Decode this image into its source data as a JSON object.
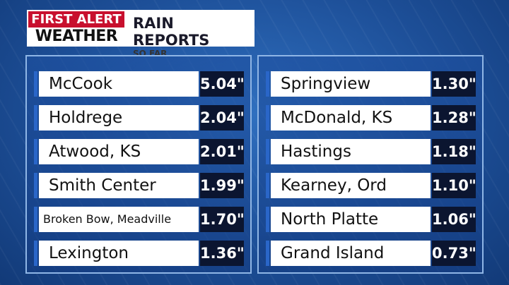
{
  "header": {
    "logo_top": "FIRST ALERT",
    "logo_bottom": "WEATHER",
    "title": "RAIN REPORTS",
    "subtitle": "SO FAR"
  },
  "panels": [
    {
      "rows": [
        {
          "location": "McCook",
          "amount": "5.04\""
        },
        {
          "location": "Holdrege",
          "amount": "2.04\""
        },
        {
          "location": "Atwood, KS",
          "amount": "2.01\""
        },
        {
          "location": "Smith Center",
          "amount": "1.99\""
        },
        {
          "location": "Broken Bow, Meadville",
          "amount": "1.70\""
        },
        {
          "location": "Lexington",
          "amount": "1.36\""
        }
      ]
    },
    {
      "rows": [
        {
          "location": "Springview",
          "amount": "1.30\""
        },
        {
          "location": "McDonald, KS",
          "amount": "1.28\""
        },
        {
          "location": "Hastings",
          "amount": "1.18\""
        },
        {
          "location": "Kearney, Ord",
          "amount": "1.10\""
        },
        {
          "location": "North Platte",
          "amount": "1.06\""
        },
        {
          "location": "Grand Island",
          "amount": "0.73\""
        }
      ]
    }
  ]
}
